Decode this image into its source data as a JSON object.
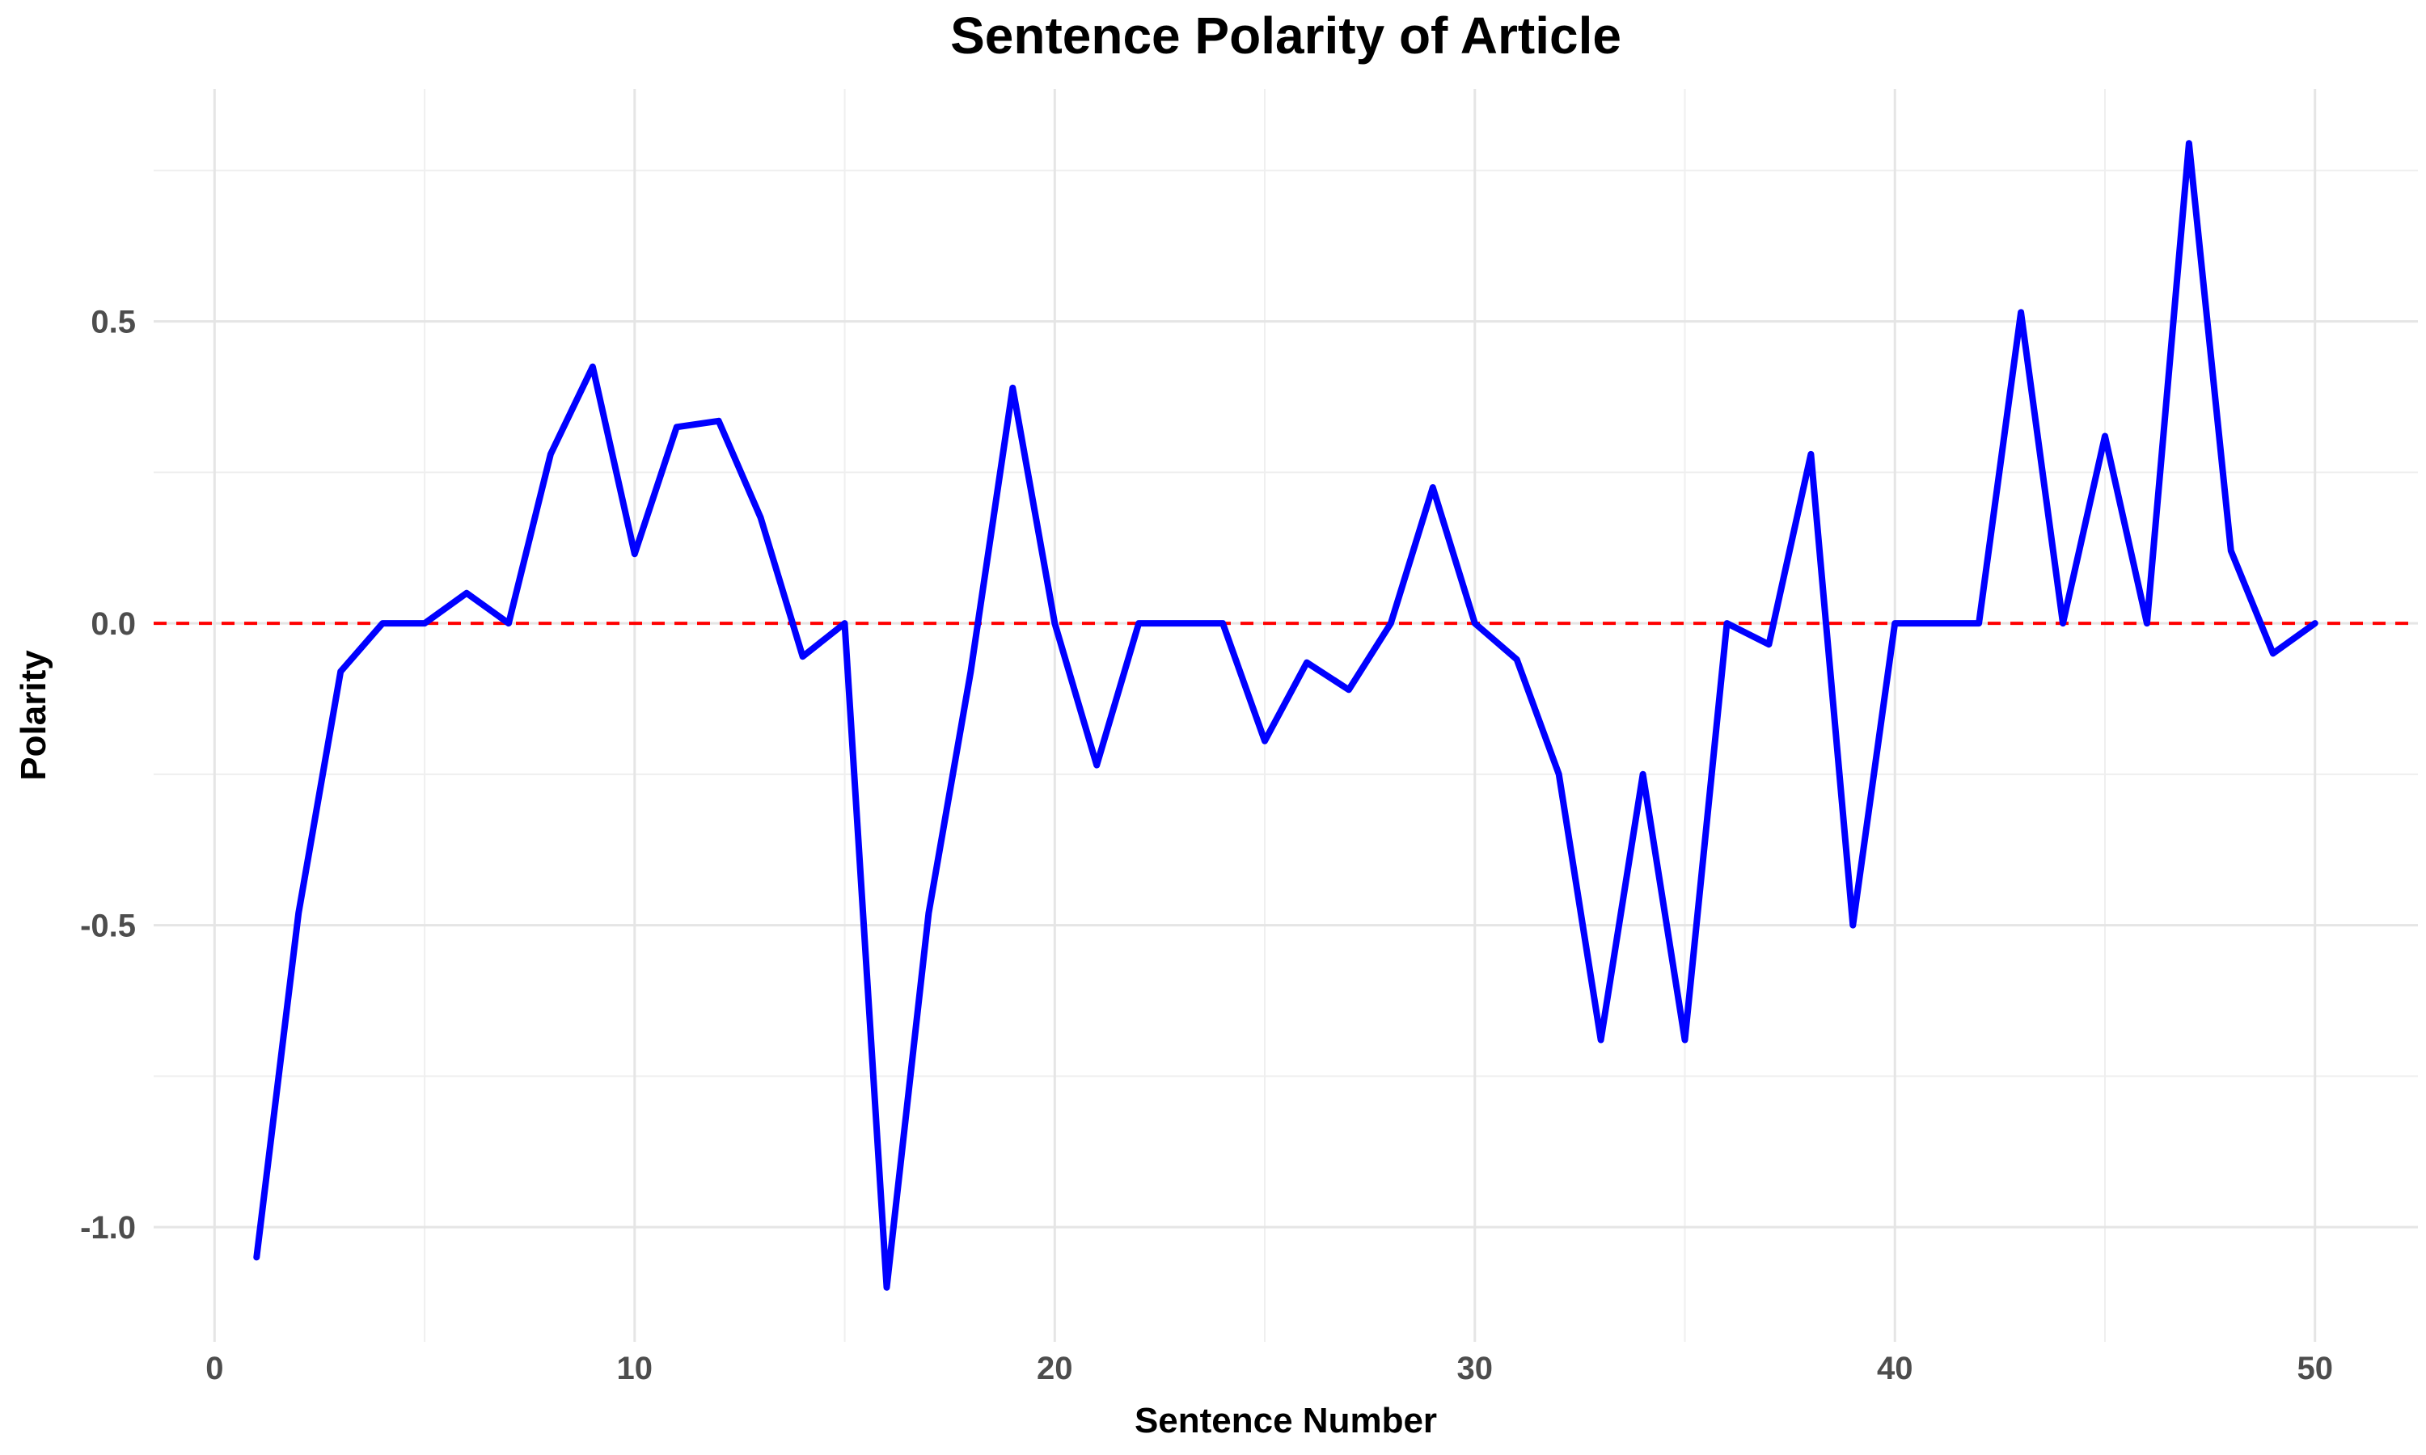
{
  "chart_data": {
    "type": "line",
    "title": "Sentence Polarity of Article",
    "xlabel": "Sentence Number",
    "ylabel": "Polarity",
    "xlim": [
      -1.45,
      52.45
    ],
    "ylim": [
      -1.19,
      0.885
    ],
    "x_ticks": [
      0,
      10,
      20,
      30,
      40,
      50
    ],
    "x_tick_labels": [
      "0",
      "10",
      "20",
      "30",
      "40",
      "50"
    ],
    "x_minor_ticks": [
      5,
      15,
      25,
      35,
      45
    ],
    "y_ticks": [
      -1.0,
      -0.5,
      0.0,
      0.5
    ],
    "y_tick_labels": [
      "-1.0",
      "-0.5",
      "0.0",
      "0.5"
    ],
    "y_minor_ticks": [
      -0.75,
      -0.25,
      0.25,
      0.75
    ],
    "grid": true,
    "legend": false,
    "reference_line": {
      "y": 0,
      "style": "dashed",
      "color": "#ff0000"
    },
    "line_color": "#0000ff",
    "x": [
      1,
      2,
      3,
      4,
      5,
      6,
      7,
      8,
      9,
      10,
      11,
      12,
      13,
      14,
      15,
      16,
      17,
      18,
      19,
      20,
      21,
      22,
      23,
      24,
      25,
      26,
      27,
      28,
      29,
      30,
      31,
      32,
      33,
      34,
      35,
      36,
      37,
      38,
      39,
      40,
      41,
      42,
      43,
      44,
      45,
      46,
      47,
      48,
      49,
      50
    ],
    "y": [
      -1.05,
      -0.48,
      -0.08,
      0.0,
      0.0,
      0.05,
      0.0,
      0.28,
      0.425,
      0.115,
      0.325,
      0.335,
      0.175,
      -0.055,
      0.0,
      -1.1,
      -0.48,
      -0.08,
      0.39,
      0.0,
      -0.235,
      0.0,
      0.0,
      0.0,
      -0.195,
      -0.065,
      -0.11,
      0.0,
      0.225,
      0.0,
      -0.06,
      -0.25,
      -0.69,
      -0.25,
      -0.69,
      0.0,
      -0.035,
      0.28,
      -0.5,
      0.0,
      0.0,
      0.0,
      0.515,
      0.0,
      0.31,
      0.0,
      0.795,
      0.12,
      -0.05,
      0.0
    ]
  }
}
